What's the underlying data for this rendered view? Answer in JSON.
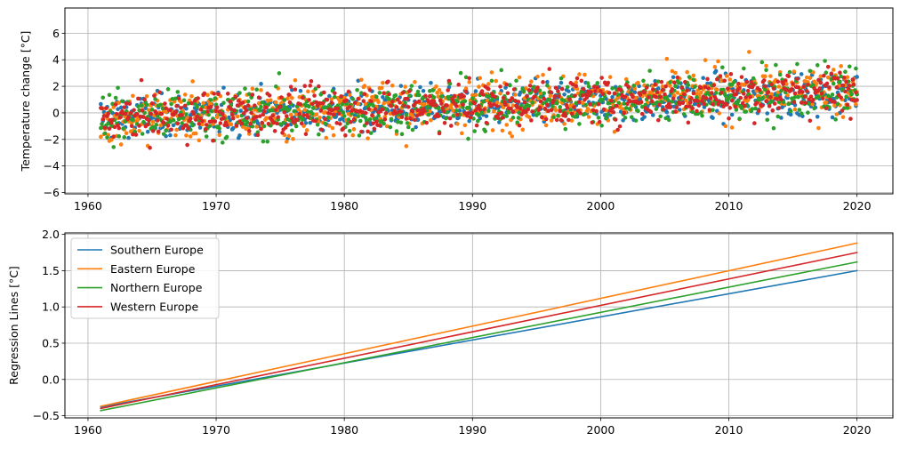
{
  "chart_data": [
    {
      "type": "scatter",
      "ylabel": "Temperature change [°C]",
      "xlim": [
        1958.2,
        2022.8
      ],
      "ylim": [
        -6.1,
        7.9
      ],
      "xticks": [
        1960,
        1970,
        1980,
        1990,
        2000,
        2010,
        2020
      ],
      "yticks": [
        -6,
        -4,
        -2,
        0,
        2,
        4,
        6
      ],
      "ytick_labels": [
        "−6",
        "−4",
        "−2",
        "0",
        "2",
        "4",
        "6"
      ],
      "grid": true,
      "x_range": [
        1961,
        2020
      ],
      "series": [
        {
          "color": "#1f77b4",
          "trend": [
            -0.38,
            1.5
          ],
          "spread": 1.1
        },
        {
          "color": "#ff7f0e",
          "trend": [
            -0.37,
            1.88
          ],
          "spread": 1.35
        },
        {
          "color": "#2ca02c",
          "trend": [
            -0.43,
            1.62
          ],
          "spread": 1.35
        },
        {
          "color": "#d62728",
          "trend": [
            -0.4,
            1.75
          ],
          "spread": 1.2
        }
      ]
    },
    {
      "type": "line",
      "ylabel": "Regression Lines [°C]",
      "xlim": [
        1958.2,
        2022.8
      ],
      "ylim": [
        -0.53,
        2.02
      ],
      "xticks": [
        1960,
        1970,
        1980,
        1990,
        2000,
        2010,
        2020
      ],
      "yticks": [
        -0.5,
        0.0,
        0.5,
        1.0,
        1.5,
        2.0
      ],
      "ytick_labels": [
        "−0.5",
        "0.0",
        "0.5",
        "1.0",
        "1.5",
        "2.0"
      ],
      "grid": true,
      "legend_position": "upper-left",
      "series": [
        {
          "name": "Southern Europe",
          "color": "#1f77b4",
          "x": [
            1961,
            2020
          ],
          "y": [
            -0.38,
            1.5
          ]
        },
        {
          "name": "Eastern Europe",
          "color": "#ff7f0e",
          "x": [
            1961,
            2020
          ],
          "y": [
            -0.37,
            1.88
          ]
        },
        {
          "name": "Northern Europe",
          "color": "#2ca02c",
          "x": [
            1961,
            2020
          ],
          "y": [
            -0.43,
            1.62
          ]
        },
        {
          "name": "Western Europe",
          "color": "#d62728",
          "x": [
            1961,
            2020
          ],
          "y": [
            -0.4,
            1.75
          ]
        }
      ]
    }
  ]
}
